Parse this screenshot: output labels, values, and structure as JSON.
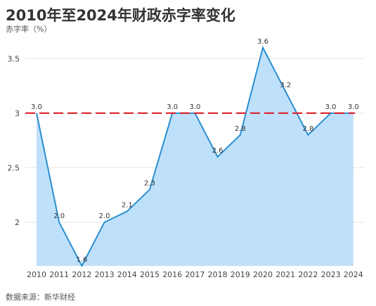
{
  "title": "2010年至2024年财政赤字率变化",
  "ylabel": "赤字率（%）",
  "source": "数据来源：新华财经",
  "chart_data": {
    "type": "area",
    "categories": [
      "2010",
      "2011",
      "2012",
      "2013",
      "2014",
      "2015",
      "2016",
      "2017",
      "2018",
      "2019",
      "2020",
      "2021",
      "2022",
      "2023",
      "2024"
    ],
    "values": [
      3.0,
      2.0,
      1.6,
      2.0,
      2.1,
      2.3,
      3.0,
      3.0,
      2.6,
      2.8,
      3.6,
      3.2,
      2.8,
      3.0,
      3.0
    ],
    "data_labels": [
      "3.0",
      "2.0",
      "1.6",
      "2.0",
      "2.1",
      "2.3",
      "3.0",
      "3.0",
      "2.6",
      "2.8",
      "3.6",
      "3.2",
      "2.8",
      "3.0",
      "3.0"
    ],
    "yticks": [
      "3.5",
      "3",
      "2.5",
      "2"
    ],
    "ytick_values": [
      3.5,
      3,
      2.5,
      2
    ],
    "ylim": [
      1.6,
      3.65
    ],
    "reference_line": 3.0,
    "grid": true,
    "colors": {
      "line": "#2a8fd0",
      "fill": "#bfe0fb",
      "reference": "#dd1f26",
      "grid": "#e6e6e6"
    }
  }
}
